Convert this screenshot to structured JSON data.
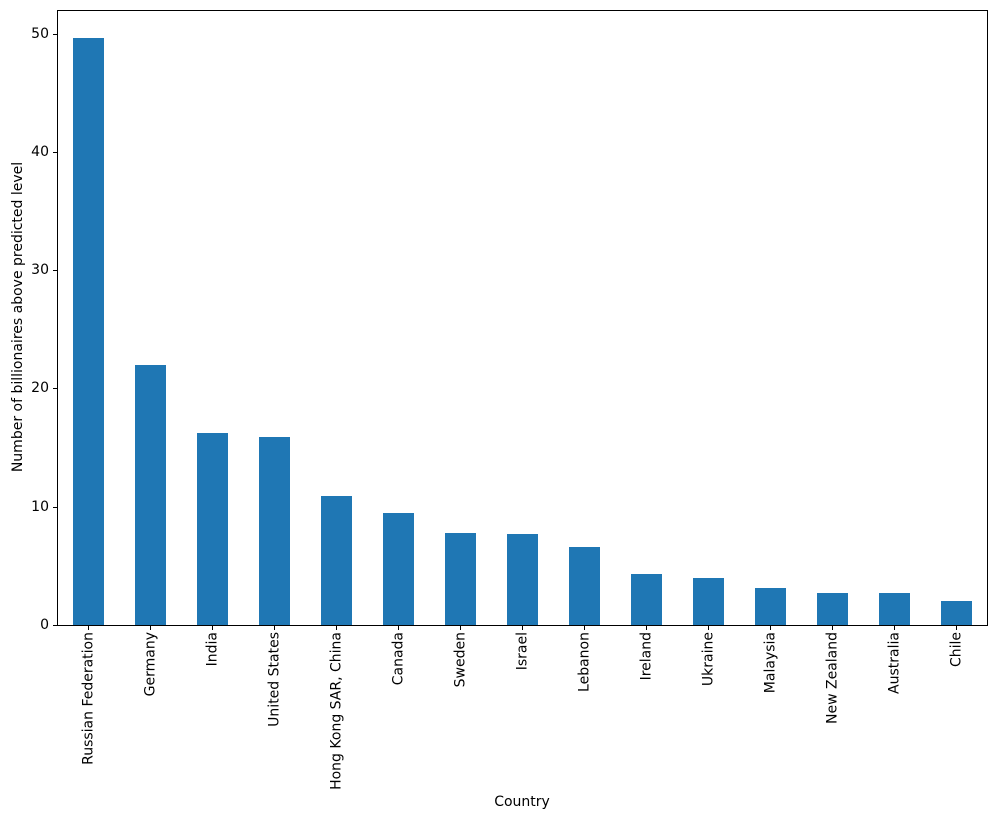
{
  "figure": {
    "background": "#ffffff"
  },
  "chart_data": {
    "type": "bar",
    "title": "",
    "xlabel": "Country",
    "ylabel": "Number of billionaires above predicted level",
    "categories": [
      "Russian Federation",
      "Germany",
      "India",
      "United States",
      "Hong Kong SAR, China",
      "Canada",
      "Sweden",
      "Israel",
      "Lebanon",
      "Ireland",
      "Ukraine",
      "Malaysia",
      "New Zealand",
      "Australia",
      "Chile"
    ],
    "values": [
      49.6,
      22.0,
      16.2,
      15.9,
      10.9,
      9.5,
      7.8,
      7.7,
      6.6,
      4.3,
      4.0,
      3.1,
      2.7,
      2.7,
      2.0
    ],
    "ylim": [
      0,
      52
    ],
    "yticks": [
      0,
      10,
      20,
      30,
      40,
      50
    ],
    "x_tick_rotation": 90,
    "bar_color": "#1f77b4",
    "axis_color": "#000000",
    "grid": false,
    "legend": null
  }
}
